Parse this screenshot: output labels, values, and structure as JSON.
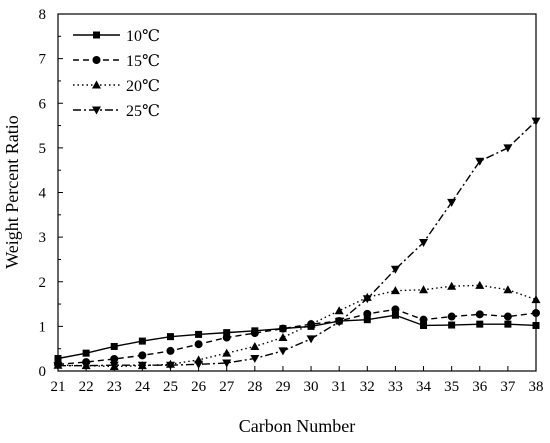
{
  "chart_data": {
    "type": "line",
    "title": "",
    "xlabel": "Carbon Number",
    "ylabel": "Weight Percent Ratio",
    "xlim": [
      21,
      38
    ],
    "ylim": [
      0,
      8
    ],
    "x_ticks": [
      "21",
      "22",
      "23",
      "24",
      "25",
      "26",
      "27",
      "28",
      "29",
      "30",
      "31",
      "32",
      "33",
      "34",
      "35",
      "36",
      "37",
      "38"
    ],
    "y_ticks": [
      "0",
      "1",
      "2",
      "3",
      "4",
      "5",
      "6",
      "7",
      "8"
    ],
    "grid": false,
    "legend_position": "top-left",
    "x": [
      21,
      22,
      23,
      24,
      25,
      26,
      27,
      28,
      29,
      30,
      31,
      32,
      33,
      34,
      35,
      36,
      37,
      38
    ],
    "series": [
      {
        "name": "10℃",
        "marker": "square",
        "line_style": "solid",
        "values": [
          0.28,
          0.4,
          0.55,
          0.67,
          0.77,
          0.82,
          0.86,
          0.9,
          0.95,
          1.0,
          1.12,
          1.15,
          1.25,
          1.02,
          1.03,
          1.05,
          1.05,
          1.02
        ]
      },
      {
        "name": "15℃",
        "marker": "circle",
        "line_style": "dashed",
        "values": [
          0.15,
          0.2,
          0.27,
          0.35,
          0.45,
          0.6,
          0.75,
          0.85,
          0.95,
          1.05,
          1.12,
          1.28,
          1.38,
          1.15,
          1.22,
          1.27,
          1.22,
          1.3
        ]
      },
      {
        "name": "20℃",
        "marker": "triangle-up",
        "line_style": "dotted",
        "values": [
          0.13,
          0.12,
          0.1,
          0.12,
          0.15,
          0.25,
          0.4,
          0.55,
          0.75,
          1.05,
          1.35,
          1.65,
          1.8,
          1.82,
          1.9,
          1.92,
          1.82,
          1.6
        ]
      },
      {
        "name": "25℃",
        "marker": "triangle-down",
        "line_style": "dashdot",
        "values": [
          0.12,
          0.12,
          0.13,
          0.13,
          0.13,
          0.15,
          0.18,
          0.28,
          0.45,
          0.72,
          1.1,
          1.62,
          2.28,
          2.88,
          3.78,
          4.7,
          5.0,
          5.6
        ]
      }
    ]
  }
}
